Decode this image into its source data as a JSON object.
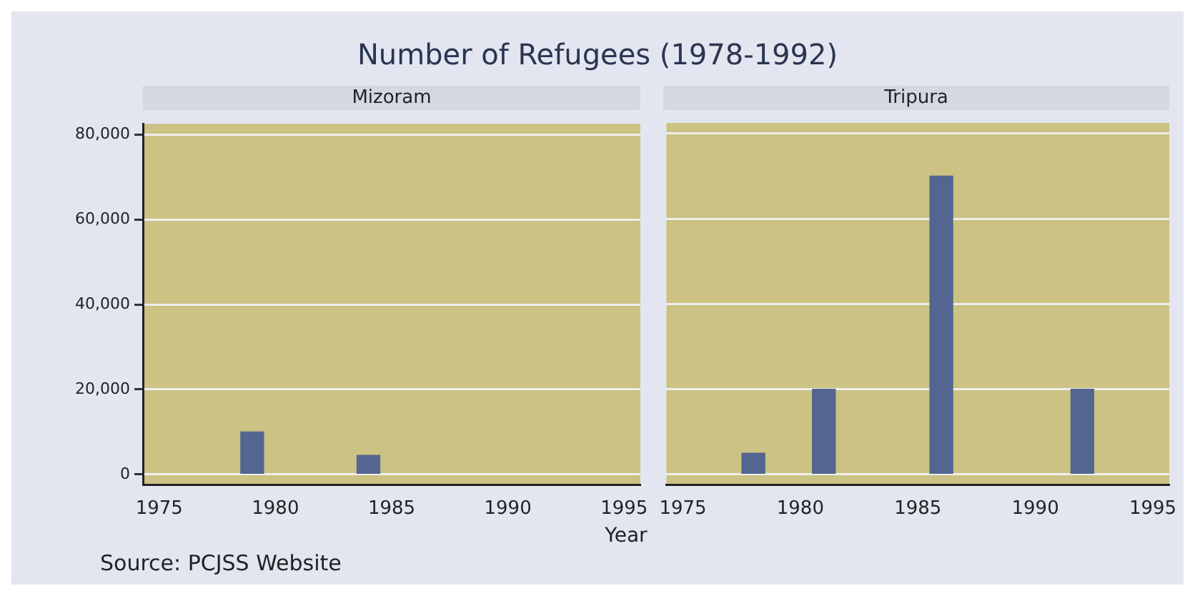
{
  "chart_data": [
    {
      "type": "bar",
      "title": "Number of Refugees (1978-1992)",
      "subtitle": "Mizoram",
      "x": [
        1979,
        1984
      ],
      "series": [
        {
          "color": "#536590",
          "values": [
            10000,
            4500
          ]
        }
      ],
      "xlim": [
        1974.3,
        1995.7
      ],
      "xticks": [
        1975,
        1980,
        1985,
        1990,
        1995
      ],
      "ylim": [
        -2500,
        82500
      ],
      "yticks": [
        0,
        {
          "value": 20000,
          "label": "20,000"
        },
        {
          "value": 40000,
          "label": "40,000"
        },
        {
          "value": 60000,
          "label": "60,000"
        },
        {
          "value": 80000,
          "label": "80,000"
        }
      ],
      "grid": "y",
      "legend": false
    },
    {
      "type": "bar",
      "subtitle": "Tripura",
      "xlabel": "Year",
      "x": [
        1978,
        1981,
        1986,
        1992
      ],
      "series": [
        {
          "color": "#536590",
          "values": [
            5000,
            20000,
            70000,
            20000
          ]
        }
      ],
      "xlim": [
        1974.3,
        1995.7
      ],
      "xticks": [
        1975,
        1980,
        1985,
        1990,
        1995
      ],
      "ylim": [
        -2500,
        82500
      ],
      "yticks": [
        0,
        20000,
        40000,
        60000,
        80000
      ],
      "grid": "y",
      "legend": false,
      "tick_labels": "x",
      "annotations": [
        "Source: PCJSS Website"
      ]
    }
  ]
}
